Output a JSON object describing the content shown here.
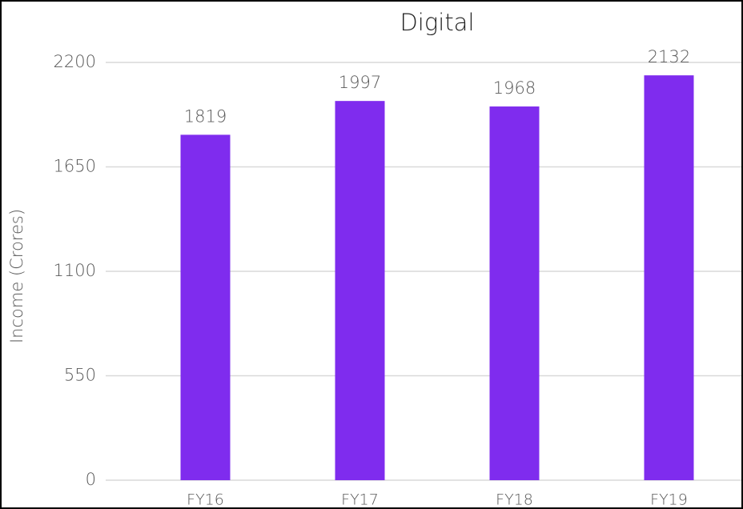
{
  "chart_data": {
    "type": "bar",
    "title": "Digital",
    "y_label": "Income (Crores)",
    "categories": [
      "FY16",
      "FY17",
      "FY18",
      "FY19"
    ],
    "values": [
      1819,
      1997,
      1968,
      2132
    ],
    "color": "#7f2cee",
    "ylim": [
      0,
      2200
    ],
    "yticks": [
      0,
      550,
      1100,
      1650,
      2200
    ],
    "grid": true
  }
}
